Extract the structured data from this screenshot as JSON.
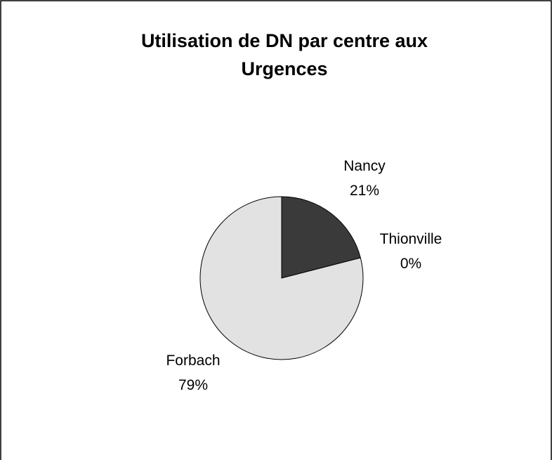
{
  "chart_data": {
    "type": "pie",
    "title": "Utilisation de DN par centre aux Urgences",
    "categories": [
      "Nancy",
      "Thionville",
      "Forbach"
    ],
    "values": [
      21,
      0,
      79
    ],
    "value_labels": [
      "21%",
      "0%",
      "79%"
    ],
    "colors": [
      "#3a3a3a",
      "#ffffff",
      "#e2e2e2"
    ]
  }
}
